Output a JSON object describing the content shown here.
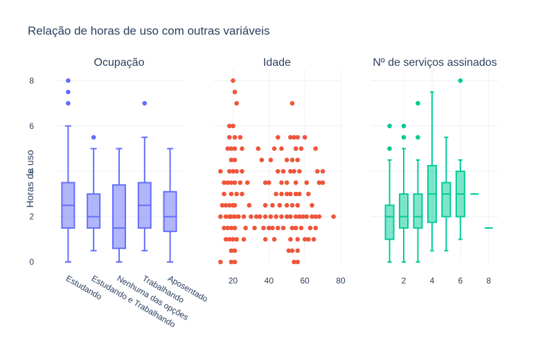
{
  "title": "Relação de horas de uso com outras variáveis",
  "ylabel": "Horas de uso",
  "colors": {
    "box1": "#636efa",
    "scatter2": "#ef553b",
    "box3": "#00cc96",
    "grid": "#ebf0f8",
    "text": "#2a3f5f"
  },
  "yticks": [
    "0",
    "2",
    "4",
    "6",
    "8"
  ],
  "chart_data": [
    {
      "type": "box",
      "subtitle": "Ocupação",
      "categories": [
        "Estudando",
        "Estudando e Trabalhando",
        "Nenhuma das opções",
        "Trabalhando",
        "Aposentado"
      ],
      "boxes": [
        {
          "min": 0,
          "q1": 1.5,
          "median": 2.5,
          "q3": 3.5,
          "max": 6,
          "outliers": [
            7,
            7.5,
            8
          ]
        },
        {
          "min": 0.5,
          "q1": 1.5,
          "median": 2,
          "q3": 3,
          "max": 5,
          "outliers": [
            5.5
          ]
        },
        {
          "min": 0,
          "q1": 0.6,
          "median": 1.5,
          "q3": 3.4,
          "max": 5,
          "outliers": []
        },
        {
          "min": 0.5,
          "q1": 1.5,
          "median": 2.5,
          "q3": 3.5,
          "max": 5.5,
          "outliers": [
            7
          ]
        },
        {
          "min": 0,
          "q1": 1.35,
          "median": 2,
          "q3": 3.1,
          "max": 5,
          "outliers": []
        }
      ],
      "ylim": [
        0,
        8.5
      ]
    },
    {
      "type": "scatter",
      "subtitle": "Idade",
      "xlim": [
        9,
        80
      ],
      "xticks": [
        20,
        40,
        60,
        80
      ],
      "ylim": [
        0,
        8.5
      ],
      "points": [
        [
          20,
          8
        ],
        [
          21,
          7.5
        ],
        [
          22,
          7
        ],
        [
          53,
          7
        ],
        [
          18,
          6
        ],
        [
          20,
          6
        ],
        [
          18,
          5.5
        ],
        [
          21,
          5.5
        ],
        [
          24,
          5.5
        ],
        [
          45,
          5.5
        ],
        [
          52,
          5.5
        ],
        [
          54,
          5.5
        ],
        [
          56,
          5.5
        ],
        [
          60,
          5.5
        ],
        [
          17,
          5
        ],
        [
          19,
          5
        ],
        [
          21,
          5
        ],
        [
          25,
          5
        ],
        [
          34,
          5
        ],
        [
          43,
          5
        ],
        [
          47,
          5
        ],
        [
          55,
          5
        ],
        [
          58,
          5
        ],
        [
          66,
          5
        ],
        [
          19,
          4.5
        ],
        [
          21,
          4.5
        ],
        [
          36,
          4.5
        ],
        [
          41,
          4.5
        ],
        [
          50,
          4.5
        ],
        [
          53,
          4.5
        ],
        [
          56,
          4.5
        ],
        [
          13,
          4
        ],
        [
          18,
          4
        ],
        [
          20,
          4
        ],
        [
          22,
          4
        ],
        [
          25,
          4
        ],
        [
          45,
          4
        ],
        [
          48,
          4
        ],
        [
          52,
          4
        ],
        [
          54,
          4
        ],
        [
          57,
          4
        ],
        [
          67,
          4
        ],
        [
          70,
          4
        ],
        [
          15,
          3.5
        ],
        [
          17,
          3.5
        ],
        [
          19,
          3.5
        ],
        [
          21,
          3.5
        ],
        [
          24,
          3.5
        ],
        [
          28,
          3.5
        ],
        [
          38,
          3.5
        ],
        [
          40,
          3.5
        ],
        [
          47,
          3.5
        ],
        [
          50,
          3.5
        ],
        [
          55,
          3.5
        ],
        [
          61,
          3.5
        ],
        [
          68,
          3.5
        ],
        [
          70,
          3.5
        ],
        [
          15,
          3
        ],
        [
          19,
          3
        ],
        [
          22,
          3
        ],
        [
          25,
          3
        ],
        [
          44,
          3
        ],
        [
          47,
          3
        ],
        [
          50,
          3
        ],
        [
          52,
          3
        ],
        [
          55,
          3
        ],
        [
          57,
          3
        ],
        [
          62,
          3
        ],
        [
          14,
          2.5
        ],
        [
          16,
          2.5
        ],
        [
          18,
          2.5
        ],
        [
          20,
          2.5
        ],
        [
          21,
          2.5
        ],
        [
          29,
          2.5
        ],
        [
          38,
          2.5
        ],
        [
          42,
          2.5
        ],
        [
          46,
          2.5
        ],
        [
          50,
          2.5
        ],
        [
          53,
          2.5
        ],
        [
          56,
          2.5
        ],
        [
          64,
          2.5
        ],
        [
          13,
          2
        ],
        [
          16,
          2
        ],
        [
          18,
          2
        ],
        [
          19,
          2
        ],
        [
          21,
          2
        ],
        [
          23,
          2
        ],
        [
          26,
          2
        ],
        [
          30,
          2
        ],
        [
          33,
          2
        ],
        [
          35,
          2
        ],
        [
          38,
          2
        ],
        [
          41,
          2
        ],
        [
          44,
          2
        ],
        [
          47,
          2
        ],
        [
          50,
          2
        ],
        [
          52,
          2
        ],
        [
          55,
          2
        ],
        [
          57,
          2
        ],
        [
          59,
          2
        ],
        [
          61,
          2
        ],
        [
          64,
          2
        ],
        [
          66,
          2
        ],
        [
          68,
          2
        ],
        [
          76,
          2
        ],
        [
          15,
          1.5
        ],
        [
          17,
          1.5
        ],
        [
          19,
          1.5
        ],
        [
          21,
          1.5
        ],
        [
          27,
          1.5
        ],
        [
          32,
          1.5
        ],
        [
          37,
          1.5
        ],
        [
          40,
          1.5
        ],
        [
          42,
          1.5
        ],
        [
          45,
          1.5
        ],
        [
          48,
          1.5
        ],
        [
          53,
          1.5
        ],
        [
          55,
          1.5
        ],
        [
          58,
          1.5
        ],
        [
          63,
          1.5
        ],
        [
          66,
          1.5
        ],
        [
          16,
          1
        ],
        [
          18,
          1
        ],
        [
          20,
          1
        ],
        [
          22,
          1
        ],
        [
          26,
          1
        ],
        [
          38,
          1
        ],
        [
          43,
          1
        ],
        [
          52,
          1
        ],
        [
          56,
          1
        ],
        [
          60,
          1
        ],
        [
          62,
          1
        ],
        [
          65,
          1
        ],
        [
          19,
          0.5
        ],
        [
          21,
          0.5
        ],
        [
          51,
          0.5
        ],
        [
          53,
          0.5
        ],
        [
          56,
          0.5
        ],
        [
          13,
          0
        ],
        [
          19,
          0
        ],
        [
          21,
          0
        ],
        [
          54,
          0
        ],
        [
          56,
          0
        ]
      ]
    },
    {
      "type": "box",
      "subtitle": "Nº de serviços assinados",
      "xlim": [
        -0.3,
        8.7
      ],
      "xticks": [
        2,
        4,
        6,
        8
      ],
      "boxes": [
        {
          "x": 1,
          "min": 0,
          "q1": 1,
          "median": 2,
          "q3": 2.5,
          "max": 4.5,
          "outliers": [
            5,
            6
          ]
        },
        {
          "x": 2,
          "min": 0,
          "q1": 1.5,
          "median": 2,
          "q3": 3,
          "max": 5,
          "outliers": [
            5.5,
            6
          ]
        },
        {
          "x": 3,
          "min": 0,
          "q1": 1.5,
          "median": 2,
          "q3": 3,
          "max": 4.5,
          "outliers": [
            5.5,
            7
          ]
        },
        {
          "x": 4,
          "min": 0.5,
          "q1": 1.75,
          "median": 3,
          "q3": 4.25,
          "max": 7.5,
          "outliers": []
        },
        {
          "x": 5,
          "min": 0.5,
          "q1": 2,
          "median": 3,
          "q3": 3.5,
          "max": 5.5,
          "outliers": []
        },
        {
          "x": 6,
          "min": 1,
          "q1": 2,
          "median": 3,
          "q3": 4,
          "max": 4.5,
          "outliers": [
            8
          ]
        },
        {
          "x": 7,
          "min": 3,
          "q1": 3,
          "median": 3,
          "q3": 3,
          "max": 3,
          "outliers": []
        },
        {
          "x": 8,
          "min": 1.5,
          "q1": 1.5,
          "median": 1.5,
          "q3": 1.5,
          "max": 1.5,
          "outliers": []
        }
      ],
      "ylim": [
        0,
        8.5
      ]
    }
  ]
}
